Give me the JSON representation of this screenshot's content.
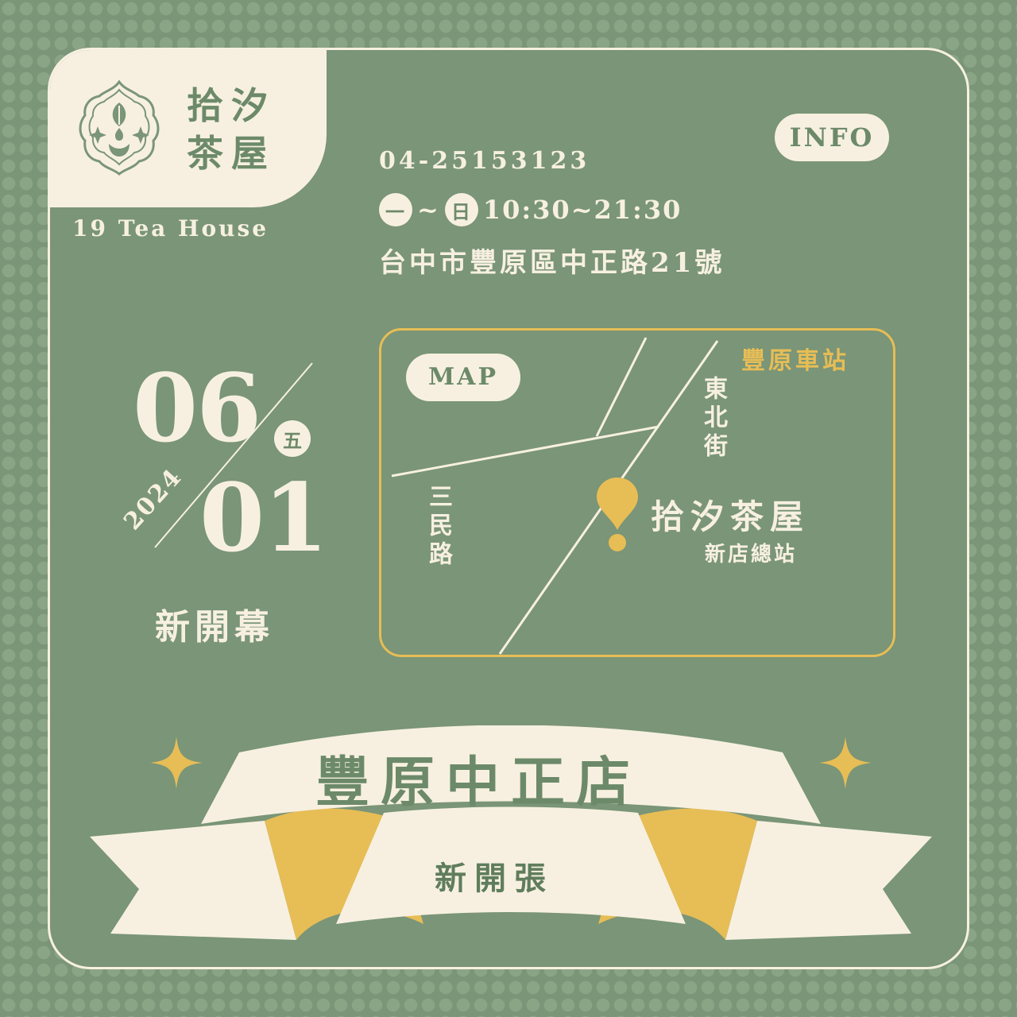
{
  "brand": {
    "name_line1": "拾汐",
    "name_line2": "茶屋",
    "name_en": "19 Tea House"
  },
  "info": {
    "badge": "INFO",
    "phone": "04-25153123",
    "day_from": "一",
    "tilde": "~",
    "day_to": "日",
    "hours": "10:30~21:30",
    "address": "台中市豐原區中正路21號"
  },
  "date": {
    "month": "06",
    "day": "01",
    "year": "2024",
    "weekday": "五",
    "event": "新開幕"
  },
  "map": {
    "badge": "MAP",
    "station": "豐原車站",
    "street_ne": "東北街",
    "street_sanmin": "三民路",
    "shop_name": "拾汐茶屋",
    "shop_sub": "新店總站"
  },
  "ribbon": {
    "title": "豐原中正店",
    "subtitle": "新開張"
  },
  "colors": {
    "background": "#7a9577",
    "cream": "#f7f0e1",
    "gold": "#e7bd56",
    "dark_green": "#6c8a69"
  }
}
